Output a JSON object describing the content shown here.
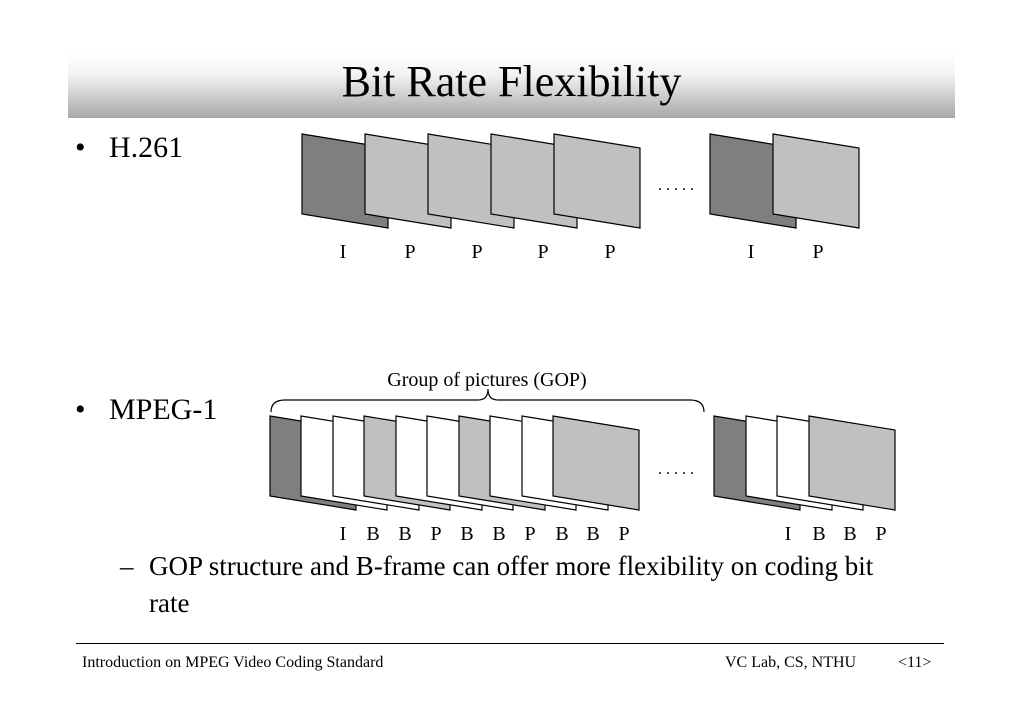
{
  "title": "Bit Rate Flexibility",
  "bullets": {
    "bullet_glyph": "•",
    "h261": "H.261",
    "mpeg1": "MPEG-1",
    "sub_dash": "–",
    "sub_text": "GOP structure and B-frame can offer more flexibility on coding bit rate"
  },
  "diagram": {
    "h261_frames": [
      "I",
      "P",
      "P",
      "P",
      "P",
      "I",
      "P"
    ],
    "mpeg1_frames": [
      "I",
      "B",
      "B",
      "P",
      "B",
      "B",
      "P",
      "B",
      "B",
      "P",
      "I",
      "B",
      "B",
      "P"
    ],
    "ellipsis": ". . . . .",
    "gop_label": "Group of pictures (GOP)",
    "colors": {
      "I": "#7f7f7f",
      "P": "#c0c0c0",
      "B": "#ffffff",
      "stroke": "#000000"
    }
  },
  "footer": {
    "left": "Introduction on MPEG Video Coding Standard",
    "right": "VC Lab, CS, NTHU",
    "page": "<11>"
  }
}
